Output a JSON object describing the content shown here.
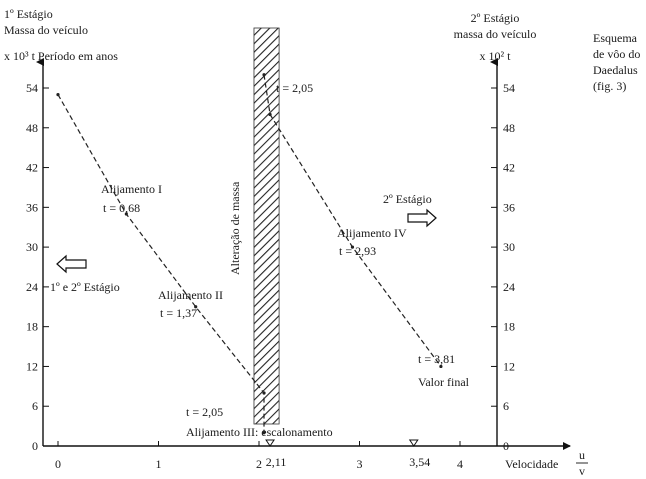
{
  "chart_data": {
    "type": "line",
    "left_axis": {
      "title_lines": [
        "1º Estágio",
        "Massa do veículo",
        "x 10³ t  Período em anos"
      ],
      "ticks": [
        0,
        6,
        12,
        18,
        24,
        30,
        36,
        42,
        48,
        54
      ],
      "tick_labels": [
        "0",
        "6",
        "12",
        "18",
        "24",
        "30",
        "36",
        "42",
        "48",
        "54"
      ]
    },
    "right_axis": {
      "title_lines": [
        "2º Estágio",
        "massa do veículo",
        "x 10² t"
      ],
      "ticks": [
        0,
        6,
        12,
        18,
        24,
        30,
        36,
        42,
        48,
        54
      ],
      "tick_labels": [
        "0",
        "6",
        "12",
        "18",
        "24",
        "30",
        "36",
        "42",
        "48",
        "54"
      ]
    },
    "x_axis": {
      "ticks": [
        0,
        1,
        2,
        3,
        4
      ],
      "tick_labels": [
        "0",
        "1",
        "2",
        "3",
        "4"
      ],
      "label": "Velocidade",
      "label_fraction": {
        "num": "u",
        "den": "v"
      },
      "markers": [
        {
          "x": 2.11,
          "label": "2,11"
        },
        {
          "x": 3.54,
          "label": "3,54"
        }
      ],
      "xlim": [
        0,
        4.4
      ]
    },
    "ylim": [
      0,
      56
    ],
    "side_caption": [
      "Esquema",
      "de vôo do",
      "Daedalus",
      "(fig. 3)"
    ],
    "series": [
      {
        "axis": "left",
        "x": [
          0,
          0.68,
          1.37,
          2.05,
          2.05
        ],
        "y": [
          53,
          35,
          21,
          8,
          2
        ]
      },
      {
        "axis": "right",
        "x": [
          2.05,
          2.11,
          2.93,
          3.81
        ],
        "y": [
          56,
          50,
          30,
          12
        ]
      }
    ],
    "band": {
      "x_from": 1.95,
      "x_to": 2.2,
      "label": "Alteração de massa"
    },
    "arrows": [
      {
        "direction": "left",
        "label": "1º e 2º Estágio"
      },
      {
        "direction": "right",
        "label": "2º Estágio"
      }
    ],
    "annotations": [
      {
        "line1": "Alijamento I",
        "line2": "t = 0,68"
      },
      {
        "line1": "Alijamento II",
        "line2": "t = 1,37"
      },
      {
        "line1": "t = 2,05",
        "line2": "Alijamento III: escalonamento"
      },
      {
        "line1": "t = 2,05"
      },
      {
        "line1": "Alijamento IV",
        "line2": "t = 2,93"
      },
      {
        "line1": "t = 3,81",
        "line2": "Valor final"
      }
    ]
  }
}
